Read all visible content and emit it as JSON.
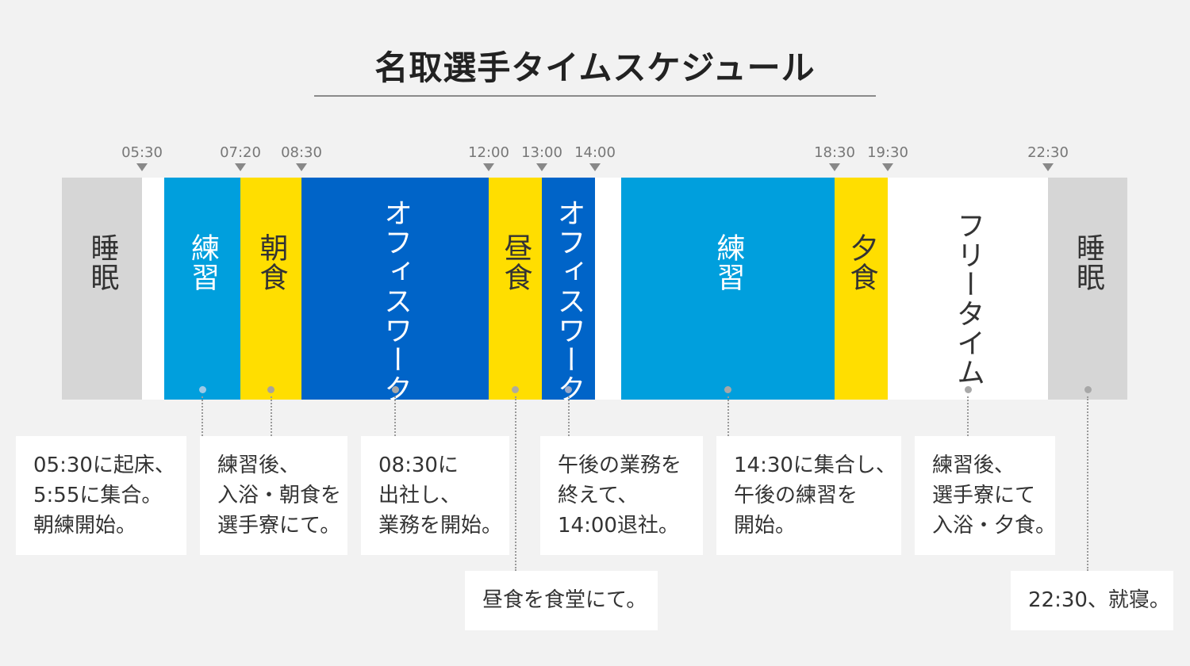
{
  "title": "名取選手タイムスケジュール",
  "colors": {
    "sleep": "#d6d6d6",
    "practice": "#009fdd",
    "meal": "#ffde00",
    "office": "#0064c8",
    "free": "#ffffff",
    "gap": "#ffffff",
    "background": "#f2f2f2"
  },
  "times": [
    "05:30",
    "07:20",
    "08:30",
    "12:00",
    "13:00",
    "14:00",
    "18:30",
    "19:30",
    "22:30"
  ],
  "bands": [
    {
      "label": "睡眠",
      "kind": "sleep",
      "text_color": "#333333"
    },
    {
      "label": "",
      "kind": "gap",
      "text_color": "#333333"
    },
    {
      "label": "練習",
      "kind": "practice",
      "text_color": "#ffffff"
    },
    {
      "label": "朝食",
      "kind": "meal",
      "text_color": "#333333"
    },
    {
      "label": "オフィスワーク",
      "kind": "office",
      "text_color": "#ffffff"
    },
    {
      "label": "昼食",
      "kind": "meal",
      "text_color": "#333333"
    },
    {
      "label": "オフィスワーク",
      "kind": "office",
      "text_color": "#ffffff"
    },
    {
      "label": "",
      "kind": "gap",
      "text_color": "#333333"
    },
    {
      "label": "練習",
      "kind": "practice",
      "text_color": "#ffffff"
    },
    {
      "label": "夕食",
      "kind": "meal",
      "text_color": "#333333"
    },
    {
      "label": "フリータイム",
      "kind": "free",
      "text_color": "#333333"
    },
    {
      "label": "睡眠",
      "kind": "sleep",
      "text_color": "#333333"
    }
  ],
  "notes": [
    {
      "lines": [
        "05:30に起床、",
        "5:55に集合。",
        "朝練開始。"
      ]
    },
    {
      "lines": [
        "練習後、",
        "入浴・朝食を",
        "選手寮にて。"
      ]
    },
    {
      "lines": [
        "08:30に",
        "出社し、",
        "業務を開始。"
      ]
    },
    {
      "lines": [
        "昼食を食堂にて。"
      ]
    },
    {
      "lines": [
        "午後の業務を",
        "終えて、",
        "14:00退社。"
      ]
    },
    {
      "lines": [
        "14:30に集合し、",
        "午後の練習を",
        "開始。"
      ]
    },
    {
      "lines": [
        "練習後、",
        "選手寮にて",
        "入浴・夕食。"
      ]
    },
    {
      "lines": [
        "22:30、就寝。"
      ]
    }
  ]
}
